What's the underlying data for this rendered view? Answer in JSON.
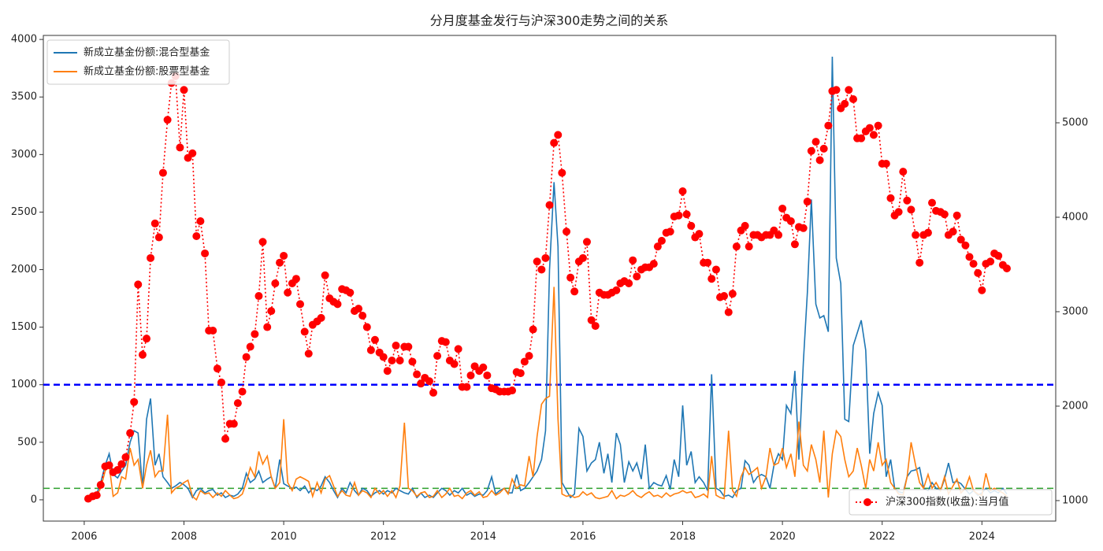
{
  "chart_data": {
    "type": "line",
    "title": "分月度基金发行与沪深300走势之间的关系",
    "xlim": [
      2005.18,
      2025.48
    ],
    "xticks": [
      2006,
      2008,
      2010,
      2012,
      2014,
      2016,
      2018,
      2020,
      2022,
      2024
    ],
    "ylim": [
      -185,
      4035
    ],
    "yticks": [
      0,
      500,
      1000,
      1500,
      2000,
      2500,
      3000,
      3500,
      4000
    ],
    "y2lim": [
      783,
      5925
    ],
    "y2ticks": [
      1000,
      2000,
      3000,
      4000,
      5000
    ],
    "legend": {
      "y": "upper left",
      "y2": "lower right"
    },
    "hlines": [
      {
        "value": 1000,
        "color": "#0000ff",
        "linestyle": "dashed"
      },
      {
        "value": 100,
        "color": "#2ca02c",
        "linestyle": "dashed"
      }
    ],
    "x": [
      2006.08,
      2006.17,
      2006.25,
      2006.33,
      2006.42,
      2006.5,
      2006.58,
      2006.67,
      2006.75,
      2006.83,
      2006.92,
      2007,
      2007.08,
      2007.17,
      2007.25,
      2007.33,
      2007.42,
      2007.5,
      2007.58,
      2007.67,
      2007.75,
      2007.83,
      2007.92,
      2008,
      2008.08,
      2008.17,
      2008.25,
      2008.33,
      2008.42,
      2008.5,
      2008.58,
      2008.67,
      2008.75,
      2008.83,
      2008.92,
      2009,
      2009.08,
      2009.17,
      2009.25,
      2009.33,
      2009.42,
      2009.5,
      2009.58,
      2009.67,
      2009.75,
      2009.83,
      2009.92,
      2010,
      2010.08,
      2010.17,
      2010.25,
      2010.33,
      2010.42,
      2010.5,
      2010.58,
      2010.67,
      2010.75,
      2010.83,
      2010.92,
      2011,
      2011.08,
      2011.17,
      2011.25,
      2011.33,
      2011.42,
      2011.5,
      2011.58,
      2011.67,
      2011.75,
      2011.83,
      2011.92,
      2012,
      2012.08,
      2012.17,
      2012.25,
      2012.33,
      2012.42,
      2012.5,
      2012.58,
      2012.67,
      2012.75,
      2012.83,
      2012.92,
      2013,
      2013.08,
      2013.17,
      2013.25,
      2013.33,
      2013.42,
      2013.5,
      2013.58,
      2013.67,
      2013.75,
      2013.83,
      2013.92,
      2014,
      2014.08,
      2014.17,
      2014.25,
      2014.33,
      2014.42,
      2014.5,
      2014.58,
      2014.67,
      2014.75,
      2014.83,
      2014.92,
      2015,
      2015.08,
      2015.17,
      2015.25,
      2015.33,
      2015.42,
      2015.5,
      2015.58,
      2015.67,
      2015.75,
      2015.83,
      2015.92,
      2016,
      2016.08,
      2016.17,
      2016.25,
      2016.33,
      2016.42,
      2016.5,
      2016.58,
      2016.67,
      2016.75,
      2016.83,
      2016.92,
      2017,
      2017.08,
      2017.17,
      2017.25,
      2017.33,
      2017.42,
      2017.5,
      2017.58,
      2017.67,
      2017.75,
      2017.83,
      2017.92,
      2018,
      2018.08,
      2018.17,
      2018.25,
      2018.33,
      2018.42,
      2018.5,
      2018.58,
      2018.67,
      2018.75,
      2018.83,
      2018.92,
      2019,
      2019.08,
      2019.17,
      2019.25,
      2019.33,
      2019.42,
      2019.5,
      2019.58,
      2019.67,
      2019.75,
      2019.83,
      2019.92,
      2020,
      2020.08,
      2020.17,
      2020.25,
      2020.33,
      2020.42,
      2020.5,
      2020.58,
      2020.67,
      2020.75,
      2020.83,
      2020.92,
      2021,
      2021.08,
      2021.17,
      2021.25,
      2021.33,
      2021.42,
      2021.5,
      2021.58,
      2021.67,
      2021.75,
      2021.83,
      2021.92,
      2022,
      2022.08,
      2022.17,
      2022.25,
      2022.33,
      2022.42,
      2022.5,
      2022.58,
      2022.67,
      2022.75,
      2022.83,
      2022.92,
      2023,
      2023.08,
      2023.17,
      2023.25,
      2023.33,
      2023.42,
      2023.5,
      2023.58,
      2023.67,
      2023.75,
      2023.83,
      2023.92,
      2024,
      2024.08,
      2024.17,
      2024.25,
      2024.33,
      2024.42,
      2024.5
    ],
    "series": [
      {
        "name": "新成立基金份额:混合型基金",
        "color": "#1f77b4",
        "axis": "y",
        "linestyle": "solid",
        "values": [
          10,
          30,
          50,
          150,
          300,
          400,
          220,
          190,
          250,
          300,
          500,
          600,
          580,
          100,
          700,
          880,
          300,
          400,
          200,
          150,
          100,
          120,
          150,
          130,
          100,
          20,
          80,
          100,
          60,
          80,
          90,
          40,
          60,
          20,
          40,
          30,
          50,
          100,
          230,
          150,
          180,
          250,
          150,
          180,
          200,
          100,
          350,
          140,
          120,
          100,
          110,
          80,
          120,
          60,
          100,
          80,
          120,
          200,
          150,
          80,
          20,
          100,
          60,
          150,
          80,
          40,
          100,
          80,
          30,
          60,
          80,
          50,
          80,
          60,
          100,
          80,
          60,
          50,
          100,
          20,
          60,
          20,
          40,
          20,
          60,
          100,
          80,
          40,
          80,
          60,
          100,
          40,
          60,
          30,
          50,
          40,
          80,
          200,
          50,
          80,
          100,
          60,
          60,
          220,
          80,
          100,
          150,
          200,
          250,
          350,
          600,
          2000,
          2760,
          2200,
          150,
          80,
          20,
          50,
          620,
          550,
          250,
          320,
          350,
          500,
          230,
          400,
          150,
          580,
          480,
          150,
          330,
          250,
          320,
          180,
          480,
          100,
          150,
          130,
          120,
          210,
          90,
          350,
          200,
          820,
          300,
          420,
          150,
          200,
          150,
          80,
          1090,
          100,
          80,
          30,
          40,
          20,
          80,
          100,
          340,
          300,
          150,
          200,
          220,
          200,
          100,
          300,
          400,
          350,
          820,
          750,
          1120,
          350,
          1200,
          1800,
          2610,
          1700,
          1580,
          1600,
          1460,
          3850,
          2100,
          1880,
          700,
          680,
          1340,
          1450,
          1560,
          1300,
          400,
          750,
          930,
          820,
          200,
          350,
          100,
          70,
          60,
          200,
          250,
          260,
          280,
          100,
          80,
          150,
          100,
          80,
          180,
          320,
          150,
          160,
          140,
          90,
          50,
          80,
          40,
          60,
          100,
          60,
          80,
          60,
          100,
          50
        ]
      },
      {
        "name": "新成立基金份额:股票型基金",
        "color": "#ff7f0e",
        "axis": "y",
        "linestyle": "solid",
        "values": [
          0,
          20,
          40,
          100,
          250,
          300,
          30,
          60,
          200,
          180,
          450,
          300,
          350,
          100,
          300,
          430,
          200,
          250,
          250,
          740,
          60,
          100,
          120,
          150,
          170,
          30,
          0,
          80,
          50,
          60,
          20,
          60,
          30,
          80,
          40,
          10,
          20,
          50,
          150,
          280,
          200,
          420,
          310,
          380,
          200,
          100,
          150,
          700,
          150,
          80,
          180,
          200,
          180,
          160,
          30,
          150,
          60,
          180,
          210,
          120,
          30,
          80,
          40,
          30,
          150,
          40,
          80,
          60,
          20,
          100,
          50,
          80,
          30,
          80,
          20,
          120,
          670,
          100,
          80,
          30,
          60,
          70,
          20,
          30,
          80,
          20,
          50,
          100,
          30,
          40,
          10,
          60,
          80,
          40,
          70,
          20,
          30,
          80,
          40,
          60,
          100,
          50,
          180,
          100,
          130,
          120,
          380,
          200,
          550,
          830,
          880,
          900,
          1850,
          700,
          50,
          30,
          40,
          20,
          30,
          70,
          40,
          60,
          20,
          10,
          20,
          30,
          80,
          10,
          40,
          30,
          50,
          80,
          40,
          20,
          50,
          70,
          30,
          40,
          20,
          60,
          30,
          50,
          60,
          80,
          60,
          70,
          20,
          30,
          50,
          20,
          380,
          40,
          20,
          10,
          600,
          80,
          30,
          200,
          280,
          220,
          250,
          280,
          100,
          200,
          450,
          300,
          320,
          450,
          280,
          400,
          200,
          680,
          300,
          250,
          480,
          350,
          150,
          600,
          20,
          400,
          600,
          550,
          350,
          200,
          250,
          450,
          300,
          100,
          350,
          250,
          500,
          300,
          350,
          150,
          100,
          50,
          40,
          200,
          500,
          300,
          150,
          100,
          220,
          100,
          150,
          80,
          200,
          50,
          120,
          180,
          60,
          100,
          200,
          80,
          50,
          40,
          230,
          80,
          100,
          80,
          60,
          30
        ]
      },
      {
        "name": "沪深300指数(收盘):当月值",
        "color": "#ff0000",
        "axis": "y2",
        "linestyle": "dotted",
        "marker": "circle",
        "values": [
          1020,
          1045,
          1057,
          1166,
          1362,
          1374,
          1300,
          1325,
          1386,
          1459,
          1715,
          2044,
          3288,
          2544,
          2715,
          3568,
          3934,
          3787,
          4470,
          5031,
          5421,
          5494,
          4738,
          5348,
          4628,
          4677,
          3800,
          3958,
          3617,
          2800,
          2800,
          2398,
          2251,
          1654,
          1813,
          1813,
          2032,
          2154,
          2520,
          2629,
          2763,
          3166,
          3739,
          2837,
          3007,
          3300,
          3519,
          3592,
          3202,
          3300,
          3348,
          3080,
          2788,
          2556,
          2861,
          2897,
          2934,
          3385,
          3141,
          3105,
          3080,
          3239,
          3227,
          3202,
          3007,
          3032,
          2958,
          2837,
          2593,
          2702,
          2568,
          2520,
          2373,
          2483,
          2641,
          2483,
          2629,
          2629,
          2471,
          2337,
          2239,
          2300,
          2264,
          2142,
          2532,
          2690,
          2678,
          2483,
          2446,
          2605,
          2203,
          2203,
          2325,
          2422,
          2373,
          2410,
          2325,
          2190,
          2178,
          2154,
          2154,
          2154,
          2166,
          2361,
          2349,
          2471,
          2532,
          2812,
          3531,
          3446,
          3568,
          4129,
          4787,
          4872,
          4470,
          3848,
          3361,
          3214,
          3531,
          3568,
          3739,
          2910,
          2849,
          3202,
          3178,
          3178,
          3202,
          3227,
          3300,
          3324,
          3300,
          3544,
          3373,
          3446,
          3470,
          3470,
          3507,
          3690,
          3751,
          3836,
          3848,
          4007,
          4019,
          4275,
          4031,
          3909,
          3787,
          3824,
          3519,
          3519,
          3348,
          3446,
          3153,
          3166,
          2995,
          3190,
          3690,
          3860,
          3909,
          3690,
          3812,
          3812,
          3787,
          3812,
          3812,
          3860,
          3812,
          4092,
          3995,
          3958,
          3714,
          3897,
          3885,
          4165,
          4702,
          4799,
          4604,
          4726,
          4970,
          5335,
          5348,
          5153,
          5201,
          5348,
          5250,
          4836,
          4836,
          4909,
          4945,
          4872,
          4970,
          4567,
          4567,
          4202,
          4019,
          4056,
          4482,
          4177,
          4080,
          3812,
          3519,
          3812,
          3836,
          4153,
          4068,
          4056,
          4031,
          3812,
          3848,
          4019,
          3763,
          3702,
          3580,
          3507,
          3409,
          3227,
          3507,
          3531,
          3617,
          3592,
          3495,
          3458
        ]
      }
    ]
  }
}
